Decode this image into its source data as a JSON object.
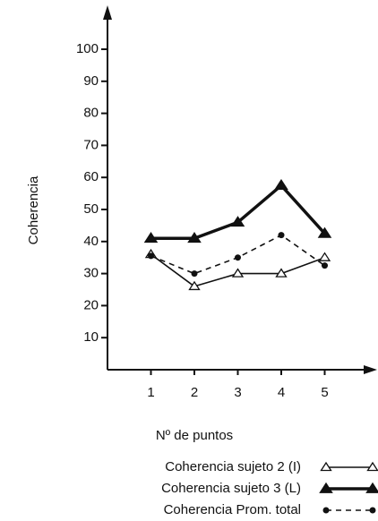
{
  "chart_data": {
    "type": "line",
    "xlabel": "Nº de puntos",
    "ylabel": "Coherencia",
    "x": [
      1,
      2,
      3,
      4,
      5
    ],
    "xlim": [
      0,
      6
    ],
    "xticks": [
      1,
      2,
      3,
      4,
      5
    ],
    "ylim": [
      0,
      100
    ],
    "yticks": [
      10,
      20,
      30,
      40,
      50,
      60,
      70,
      80,
      90,
      100
    ],
    "series": [
      {
        "name": "Coherencia sujeto 2 (I)",
        "color": "#111111",
        "marker": "triangle-open",
        "dashed": false,
        "width": 1.6,
        "values": [
          36,
          26,
          30,
          30,
          35
        ]
      },
      {
        "name": "Coherencia sujeto 3 (L)",
        "color": "#111111",
        "marker": "triangle-filled",
        "dashed": false,
        "width": 3.5,
        "values": [
          41,
          41,
          46,
          57.5,
          42.5
        ]
      },
      {
        "name": "Coherencia Prom. total",
        "color": "#111111",
        "marker": "dot",
        "dashed": true,
        "width": 1.6,
        "values": [
          35.5,
          30,
          35,
          42,
          32.5
        ]
      }
    ]
  }
}
